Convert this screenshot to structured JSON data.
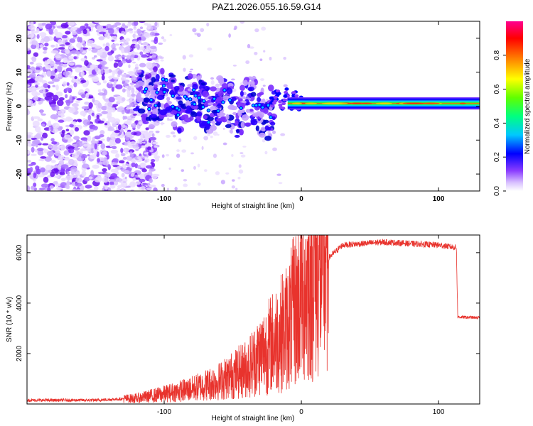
{
  "title": "PAZ1.2026.055.16.59.G14",
  "chart_data": [
    {
      "type": "heatmap",
      "name": "spectrogram",
      "xlabel": "Height of straight line (km)",
      "ylabel": "Frequency (Hz)",
      "xlim": [
        -200,
        130
      ],
      "ylim": [
        -25,
        25
      ],
      "xticks": [
        -100,
        0,
        100
      ],
      "yticks": [
        -20,
        -10,
        0,
        10,
        20
      ],
      "colorbar": {
        "label": "Normalized spectral amplitude",
        "range": [
          0,
          1
        ],
        "ticks": [
          0.0,
          0.2,
          0.4,
          0.6,
          0.8
        ],
        "colors": [
          "#ffffff",
          "#9b59ff",
          "#5a00e6",
          "#0000ff",
          "#00c8ff",
          "#00ff80",
          "#80ff00",
          "#ffff00",
          "#ff8000",
          "#ff0000",
          "#ff00a0"
        ]
      },
      "features": {
        "noise_region_x": [
          -200,
          -120
        ],
        "scatter_blob_region_x": [
          -120,
          -20
        ],
        "tone_start_x": -10,
        "tone_frequency_hz": 0.8
      }
    },
    {
      "type": "line",
      "name": "snr",
      "xlabel": "Height of straight line (km)",
      "ylabel": "SNR (10 * v/v)",
      "xlim": [
        -200,
        130
      ],
      "ylim": [
        0,
        6700
      ],
      "xticks": [
        -100,
        0,
        100
      ],
      "yticks": [
        2000,
        4000,
        6000
      ],
      "color": "#e8332d",
      "profile": [
        {
          "x": -200,
          "y": 150
        },
        {
          "x": -150,
          "y": 150
        },
        {
          "x": -120,
          "y": 230
        },
        {
          "x": -100,
          "y": 400
        },
        {
          "x": -80,
          "y": 600
        },
        {
          "x": -60,
          "y": 900
        },
        {
          "x": -40,
          "y": 1400
        },
        {
          "x": -20,
          "y": 2500
        },
        {
          "x": -10,
          "y": 3100
        },
        {
          "x": 0,
          "y": 4300
        },
        {
          "x": 10,
          "y": 5200
        },
        {
          "x": 20,
          "y": 5800
        },
        {
          "x": 30,
          "y": 6300
        },
        {
          "x": 60,
          "y": 6420
        },
        {
          "x": 100,
          "y": 6300
        },
        {
          "x": 113,
          "y": 6200
        },
        {
          "x": 114,
          "y": 3450
        },
        {
          "x": 130,
          "y": 3420
        }
      ]
    }
  ]
}
